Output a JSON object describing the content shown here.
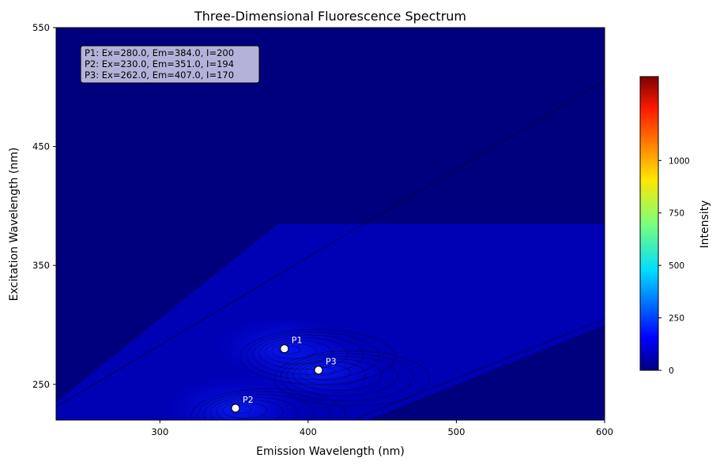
{
  "chart_data": {
    "type": "heatmap",
    "title": "Three-Dimensional Fluorescence Spectrum",
    "xlabel": "Emission Wavelength (nm)",
    "ylabel": "Excitation Wavelength (nm)",
    "xlim": [
      230,
      600
    ],
    "ylim": [
      220,
      550
    ],
    "x_ticks": [
      300,
      400,
      500,
      600
    ],
    "y_ticks": [
      250,
      350,
      450,
      550
    ],
    "colormap": "jet",
    "colorbar": {
      "label": "Intensity",
      "range": [
        0,
        1400
      ],
      "ticks": [
        0,
        250,
        500,
        750,
        1000
      ]
    },
    "peaks": [
      {
        "label": "P1",
        "ex": 280.0,
        "em": 384.0,
        "intensity": 200
      },
      {
        "label": "P2",
        "ex": 230.0,
        "em": 351.0,
        "intensity": 194
      },
      {
        "label": "P3",
        "ex": 262.0,
        "em": 407.0,
        "intensity": 170
      }
    ],
    "annotation_lines": [
      "P1: Ex=280.0, Em=384.0, I=200",
      "P2: Ex=230.0, Em=351.0, I=194",
      "P3: Ex=262.0, Em=407.0, I=170"
    ],
    "colors": {
      "background_field": "#00007f",
      "peak_marker": "#ffffff",
      "annotation_box": "#b3b3d9"
    }
  }
}
